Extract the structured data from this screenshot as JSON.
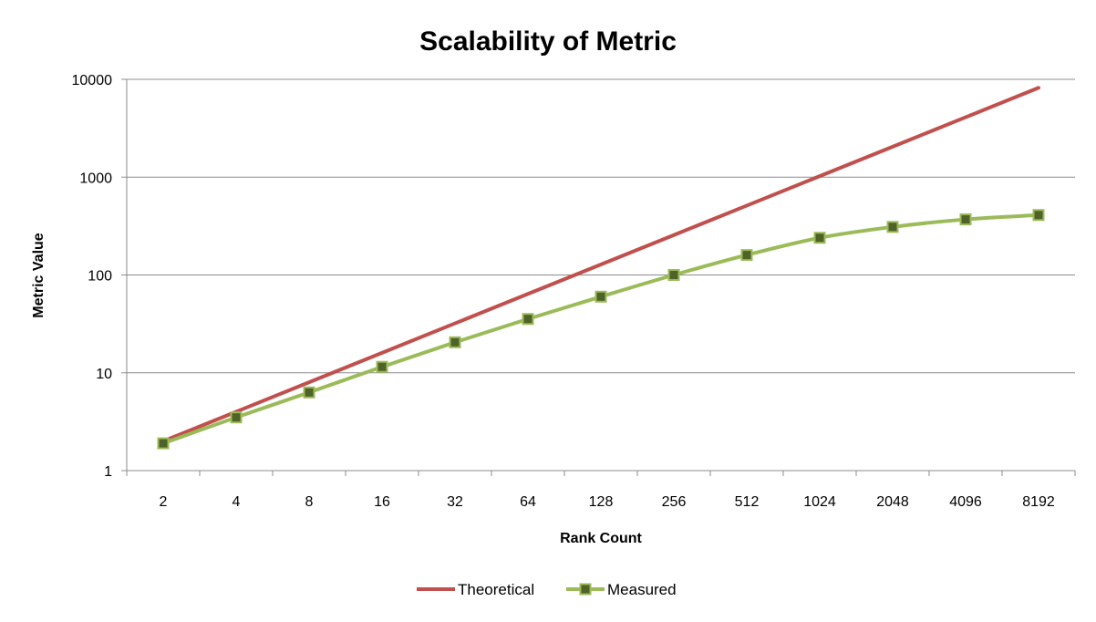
{
  "chart_data": {
    "type": "line",
    "title": "Scalability of Metric",
    "xlabel": "Rank Count",
    "ylabel": "Metric Value",
    "x_scale": "log2",
    "y_scale": "log",
    "categories": [
      "2",
      "4",
      "8",
      "16",
      "32",
      "64",
      "128",
      "256",
      "512",
      "1024",
      "2048",
      "4096",
      "8192"
    ],
    "ylim": [
      1,
      10000
    ],
    "y_ticks": [
      "1",
      "10",
      "100",
      "1000",
      "10000"
    ],
    "grid": "horizontal",
    "legend_position": "bottom",
    "series": [
      {
        "name": "Theoretical",
        "color": "#c0504d",
        "marker": "none",
        "values": [
          2,
          4,
          8,
          16,
          32,
          64,
          128,
          256,
          512,
          1024,
          2048,
          4096,
          8192
        ]
      },
      {
        "name": "Measured",
        "color": "#9bbb59",
        "marker": "square",
        "marker_fill": "#4f6228",
        "values": [
          1.9,
          3.5,
          6.3,
          11.5,
          20.5,
          35.5,
          60,
          100,
          160,
          240,
          310,
          370,
          410
        ]
      }
    ]
  }
}
